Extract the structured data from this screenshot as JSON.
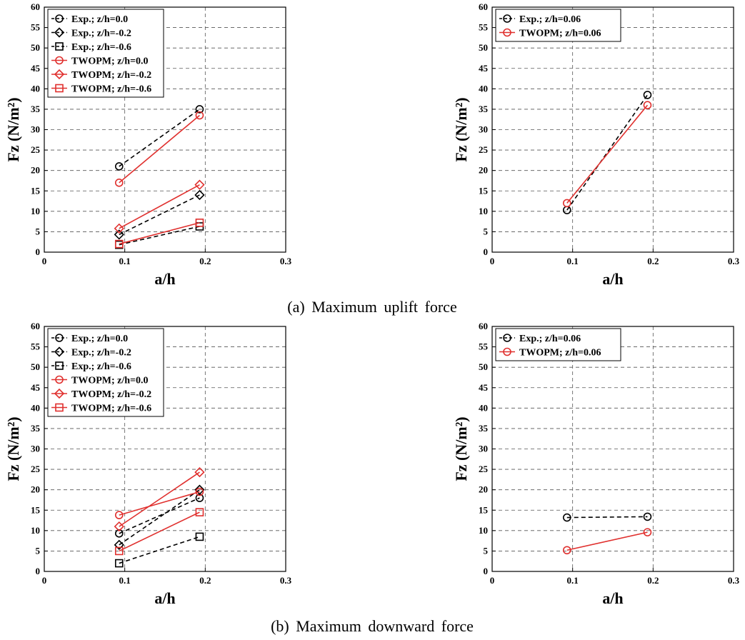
{
  "figure": {
    "caption_a": "(a) Maximum uplift force",
    "caption_b": "(b) Maximum downward force"
  },
  "colors": {
    "exp": "#000000",
    "twopm": "#e0302e"
  },
  "chart_data": [
    {
      "id": "uplift-left",
      "type": "line",
      "xlabel": "a/h",
      "ylabel": "Fz (N/m²)",
      "xlim": [
        0,
        0.3
      ],
      "ylim": [
        0,
        60
      ],
      "xticks": [
        "0",
        "0.1",
        "0.2",
        "0.3"
      ],
      "yticks": [
        "0",
        "5",
        "10",
        "15",
        "20",
        "25",
        "30",
        "35",
        "40",
        "45",
        "50",
        "55",
        "60"
      ],
      "grid": true,
      "legend_position": "top-left",
      "series": [
        {
          "name": "Exp.; z/h=0.0",
          "marker": "circle",
          "style": "dashed",
          "color": "#000000",
          "x": [
            0.093,
            0.193
          ],
          "y": [
            21.0,
            35.0
          ]
        },
        {
          "name": "Exp.; z/h=-0.2",
          "marker": "diamond",
          "style": "dashed",
          "color": "#000000",
          "x": [
            0.093,
            0.193
          ],
          "y": [
            4.3,
            14.0
          ]
        },
        {
          "name": "Exp.; z/h=-0.6",
          "marker": "square",
          "style": "dashed",
          "color": "#000000",
          "x": [
            0.093,
            0.193
          ],
          "y": [
            1.8,
            6.3
          ]
        },
        {
          "name": "TWOPM; z/h=0.0",
          "marker": "circle",
          "style": "solid",
          "color": "#e0302e",
          "x": [
            0.093,
            0.193
          ],
          "y": [
            17.0,
            33.5
          ]
        },
        {
          "name": "TWOPM; z/h=-0.2",
          "marker": "diamond",
          "style": "solid",
          "color": "#e0302e",
          "x": [
            0.093,
            0.193
          ],
          "y": [
            5.8,
            16.5
          ]
        },
        {
          "name": "TWOPM; z/h=-0.6",
          "marker": "square",
          "style": "solid",
          "color": "#e0302e",
          "x": [
            0.093,
            0.193
          ],
          "y": [
            2.0,
            7.2
          ]
        }
      ]
    },
    {
      "id": "uplift-right",
      "type": "line",
      "xlabel": "a/h",
      "ylabel": "Fz (N/m²)",
      "xlim": [
        0,
        0.3
      ],
      "ylim": [
        0,
        60
      ],
      "xticks": [
        "0",
        "0.1",
        "0.2",
        "0.3"
      ],
      "yticks": [
        "0",
        "5",
        "10",
        "15",
        "20",
        "25",
        "30",
        "35",
        "40",
        "45",
        "50",
        "55",
        "60"
      ],
      "grid": true,
      "legend_position": "top-left",
      "series": [
        {
          "name": "Exp.; z/h=0.06",
          "marker": "circle",
          "style": "dashed",
          "color": "#000000",
          "x": [
            0.093,
            0.193
          ],
          "y": [
            10.3,
            38.5
          ]
        },
        {
          "name": "TWOPM; z/h=0.06",
          "marker": "circle",
          "style": "solid",
          "color": "#e0302e",
          "x": [
            0.093,
            0.193
          ],
          "y": [
            12.0,
            36.0
          ]
        }
      ]
    },
    {
      "id": "downward-left",
      "type": "line",
      "xlabel": "a/h",
      "ylabel": "Fz (N/m²)",
      "xlim": [
        0,
        0.3
      ],
      "ylim": [
        0,
        60
      ],
      "xticks": [
        "0",
        "0.1",
        "0.2",
        "0.3"
      ],
      "yticks": [
        "0",
        "5",
        "10",
        "15",
        "20",
        "25",
        "30",
        "35",
        "40",
        "45",
        "50",
        "55",
        "60"
      ],
      "grid": true,
      "legend_position": "top-left",
      "series": [
        {
          "name": "Exp.; z/h=0.0",
          "marker": "circle",
          "style": "dashed",
          "color": "#000000",
          "x": [
            0.093,
            0.193
          ],
          "y": [
            9.3,
            18.0
          ]
        },
        {
          "name": "Exp.; z/h=-0.2",
          "marker": "diamond",
          "style": "dashed",
          "color": "#000000",
          "x": [
            0.093,
            0.193
          ],
          "y": [
            6.5,
            20.0
          ]
        },
        {
          "name": "Exp.; z/h=-0.6",
          "marker": "square",
          "style": "dashed",
          "color": "#000000",
          "x": [
            0.093,
            0.193
          ],
          "y": [
            2.0,
            8.5
          ]
        },
        {
          "name": "TWOPM; z/h=0.0",
          "marker": "circle",
          "style": "solid",
          "color": "#e0302e",
          "x": [
            0.093,
            0.193
          ],
          "y": [
            13.8,
            19.5
          ]
        },
        {
          "name": "TWOPM; z/h=-0.2",
          "marker": "diamond",
          "style": "solid",
          "color": "#e0302e",
          "x": [
            0.093,
            0.193
          ],
          "y": [
            11.0,
            24.3
          ]
        },
        {
          "name": "TWOPM; z/h=-0.6",
          "marker": "square",
          "style": "solid",
          "color": "#e0302e",
          "x": [
            0.093,
            0.193
          ],
          "y": [
            5.0,
            14.5
          ]
        }
      ]
    },
    {
      "id": "downward-right",
      "type": "line",
      "xlabel": "a/h",
      "ylabel": "Fz (N/m²)",
      "xlim": [
        0,
        0.3
      ],
      "ylim": [
        0,
        60
      ],
      "xticks": [
        "0",
        "0.1",
        "0.2",
        "0.3"
      ],
      "yticks": [
        "0",
        "5",
        "10",
        "15",
        "20",
        "25",
        "30",
        "35",
        "40",
        "45",
        "50",
        "55",
        "60"
      ],
      "grid": true,
      "legend_position": "top-left",
      "series": [
        {
          "name": "Exp.; z/h=0.06",
          "marker": "circle",
          "style": "dashed",
          "color": "#000000",
          "x": [
            0.093,
            0.193
          ],
          "y": [
            13.2,
            13.4
          ]
        },
        {
          "name": "TWOPM; z/h=0.06",
          "marker": "circle",
          "style": "solid",
          "color": "#e0302e",
          "x": [
            0.093,
            0.193
          ],
          "y": [
            5.2,
            9.6
          ]
        }
      ]
    }
  ]
}
